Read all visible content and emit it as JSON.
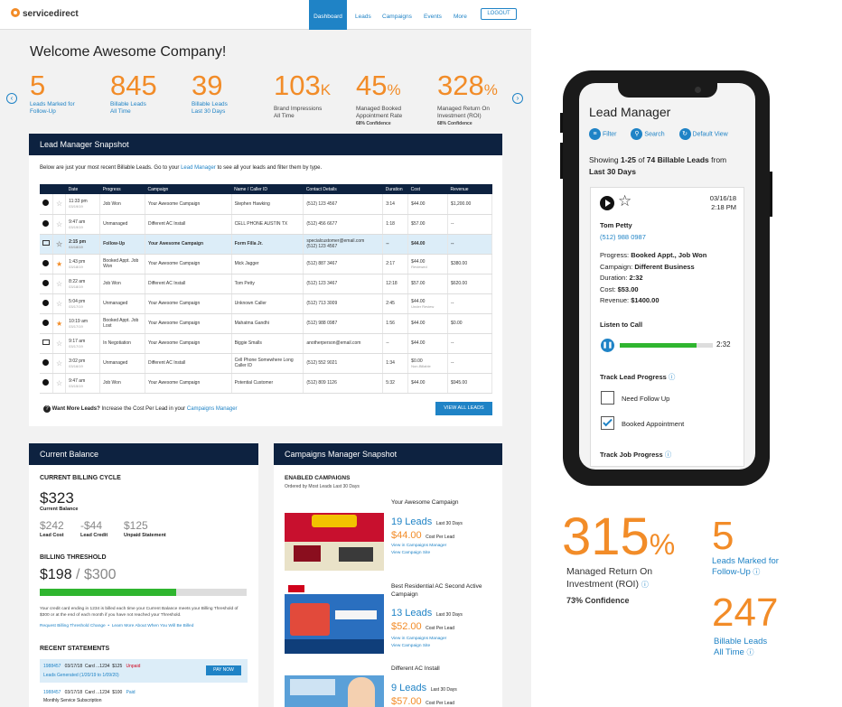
{
  "nav": {
    "logo": "servicedirect",
    "items": [
      "Dashboard",
      "Leads",
      "Campaigns",
      "Events",
      "More"
    ],
    "logout": "LOGOUT"
  },
  "welcome": "Welcome Awesome Company!",
  "stats": [
    {
      "value": "5",
      "unit": "",
      "label1": "Leads Marked for",
      "label2": "Follow-Up",
      "sub": ""
    },
    {
      "value": "845",
      "unit": "",
      "label1": "Billable Leads",
      "label2": "All Time",
      "sub": ""
    },
    {
      "value": "39",
      "unit": "",
      "label1": "Billable Leads",
      "label2": "Last 30 Days",
      "sub": ""
    },
    {
      "value": "103",
      "unit": "K",
      "label1": "Brand Impressions",
      "label2": "All Time",
      "sub": ""
    },
    {
      "value": "45",
      "unit": "%",
      "label1": "Managed Booked",
      "label2": "Appointment Rate",
      "sub": "68% Confidence"
    },
    {
      "value": "328",
      "unit": "%",
      "label1": "Managed Return On",
      "label2": "Investment (ROI)",
      "sub": "68% Confidence"
    }
  ],
  "snapshot": {
    "title": "Lead Manager Snapshot",
    "intro_a": "Below are just your most recent Billable Leads. Go to your ",
    "intro_link": "Lead Manager",
    "intro_b": " to see all your leads and filter them by type.",
    "columns": [
      "",
      "",
      "Date",
      "Progress",
      "Campaign",
      "Name / Caller ID",
      "Contact Details",
      "Duration",
      "Cost",
      "Revenue"
    ],
    "rows": [
      {
        "icon": "play",
        "star": false,
        "time": "11:33 pm",
        "date": "03/19/19",
        "progress": "Job Won",
        "campaign": "Your Awesome Campaign",
        "name": "Stephen Hawking",
        "contact": "(512) 123 4567",
        "contact2": "",
        "duration": "3:14",
        "cost": "$44.00",
        "cost_note": "",
        "revenue": "$1,200.00",
        "hl": false
      },
      {
        "icon": "play",
        "star": false,
        "time": "9:47 am",
        "date": "03/19/19",
        "progress": "Unmanaged",
        "campaign": "Different AC Install",
        "name": "CELL PHONE AUSTIN TX",
        "contact": "(512) 456 6677",
        "contact2": "",
        "duration": "1:18",
        "cost": "$57.00",
        "cost_note": "",
        "revenue": "--",
        "hl": false
      },
      {
        "icon": "mail",
        "star": false,
        "time": "2:15 pm",
        "date": "03/18/19",
        "progress": "Follow-Up",
        "campaign": "Your Awesome Campaign",
        "name": "Form Filla Jr.",
        "contact": "specialcustomer@email.com",
        "contact2": "(512) 123 4567",
        "duration": "--",
        "cost": "$44.00",
        "cost_note": "",
        "revenue": "--",
        "hl": true
      },
      {
        "icon": "play",
        "star": true,
        "time": "1:43 pm",
        "date": "03/18/19",
        "progress": "Booked Appt. Job Won",
        "campaign": "Your Awesome Campaign",
        "name": "Mick Jagger",
        "contact": "(512) 887 3467",
        "contact2": "",
        "duration": "2:17",
        "cost": "$44.00",
        "cost_note": "Reviewed",
        "revenue": "$380.00",
        "hl": false
      },
      {
        "icon": "play",
        "star": false,
        "time": "8:22 am",
        "date": "03/18/19",
        "progress": "Job Won",
        "campaign": "Different AC Install",
        "name": "Tom Petty",
        "contact": "(512) 123 3467",
        "contact2": "",
        "duration": "12:18",
        "cost": "$57.00",
        "cost_note": "",
        "revenue": "$620.00",
        "hl": false
      },
      {
        "icon": "play",
        "star": false,
        "time": "5:04 pm",
        "date": "03/17/19",
        "progress": "Unmanaged",
        "campaign": "Your Awesome Campaign",
        "name": "Unknown Caller",
        "contact": "(512) 713 3009",
        "contact2": "",
        "duration": "2:45",
        "cost": "$44.00",
        "cost_note": "Under Review",
        "revenue": "--",
        "hl": false
      },
      {
        "icon": "play",
        "star": true,
        "time": "10:19 am",
        "date": "03/17/19",
        "progress": "Booked Appt. Job Lost",
        "campaign": "Your Awesome Campaign",
        "name": "Mahatma Gandhi",
        "contact": "(512) 988 0987",
        "contact2": "",
        "duration": "1:56",
        "cost": "$44.00",
        "cost_note": "",
        "revenue": "$0.00",
        "hl": false
      },
      {
        "icon": "mail",
        "star": false,
        "time": "9:17 am",
        "date": "03/17/19",
        "progress": "In Negotiation",
        "campaign": "Your Awesome Campaign",
        "name": "Biggie Smalls",
        "contact": "anotherperson@email.com",
        "contact2": "",
        "duration": "--",
        "cost": "$44.00",
        "cost_note": "",
        "revenue": "--",
        "hl": false
      },
      {
        "icon": "play",
        "star": false,
        "time": "3:02 pm",
        "date": "03/16/19",
        "progress": "Unmanaged",
        "campaign": "Different AC Install",
        "name": "Cell Phone Somewhere Long Caller ID",
        "contact": "(512) 552 9021",
        "contact2": "",
        "duration": "1:34",
        "cost": "$0.00",
        "cost_note": "Non-Billable",
        "revenue": "--",
        "hl": false
      },
      {
        "icon": "play",
        "star": false,
        "time": "9:47 am",
        "date": "03/15/19",
        "progress": "Job Won",
        "campaign": "Your Awesome Campaign",
        "name": "Potential Customer",
        "contact": "(512) 809 1126",
        "contact2": "",
        "duration": "5:32",
        "cost": "$44.00",
        "cost_note": "",
        "revenue": "$945.00",
        "hl": false
      }
    ],
    "more_a": "Want More Leads?",
    "more_b": " Increase the Cost Per Lead in your ",
    "more_link": "Campaigns Manager",
    "view_all": "VIEW ALL LEADS"
  },
  "balance": {
    "title": "Current Balance",
    "cycle_head": "CURRENT BILLING CYCLE",
    "current": "$323",
    "current_label": "Current Balance",
    "lead_cost": "$242",
    "lead_cost_label": "Lead Cost",
    "lead_credit": "-$44",
    "lead_credit_label": "Lead Credit",
    "unpaid": "$125",
    "unpaid_label": "Unpaid Statement",
    "threshold_head": "BILLING THRESHOLD",
    "threshold_value": "$198",
    "threshold_sep": " / ",
    "threshold_max": "$300",
    "threshold_fraction": 0.66,
    "note": "Your credit card ending in 1234 is billed each time your Current Balance meets your Billing Threshold of $300 or at the end of each month if you have not reached your Threshold.",
    "link1": "Request Billing Threshold Change",
    "link2": "Learn More About When You Will Be Billed",
    "statements_head": "RECENT STATEMENTS",
    "st1_id": "1988457",
    "st1_date": "03/17/18",
    "st1_card": "Card ...1234",
    "st1_amount": "$125",
    "st1_status": "Unpaid",
    "st1_desc": "Leads Generated (1/20/19 to 1/09/20)",
    "pay_now": "PAY NOW",
    "st2_id": "1988457",
    "st2_date": "03/17/18",
    "st2_card": "Card ...1234",
    "st2_amount": "$100",
    "st2_status": "Paid",
    "st2_desc": "Monthly Service Subscription"
  },
  "campaigns": {
    "title": "Campaigns Manager Snapshot",
    "enabled_head": "ENABLED CAMPAIGNS",
    "ordered": "Ordered by Most Leads Last 30 Days",
    "items": [
      {
        "name": "Your Awesome Campaign",
        "leads": "19 Leads",
        "leads_sub": "Last 30 Days",
        "cost": "$44.00",
        "cost_sub": "Cost Per Lead",
        "link1": "View in Campaigns Manager",
        "link2": "View Campaign Site",
        "img_color": "#c8102e"
      },
      {
        "name": "Best Residential AC Second Active Campaign",
        "leads": "13 Leads",
        "leads_sub": "Last 30 Days",
        "cost": "$52.00",
        "cost_sub": "Cost Per Lead",
        "link1": "View in Campaigns Manager",
        "link2": "View Campaign Site",
        "img_color": "#2a6fbf"
      },
      {
        "name": "Different AC Install",
        "leads": "9 Leads",
        "leads_sub": "Last 30 Days",
        "cost": "$57.00",
        "cost_sub": "Cost Per Lead",
        "link1": "",
        "link2": "",
        "img_color": "#5aa0d8"
      }
    ]
  },
  "phone": {
    "title": "Lead Manager",
    "filter": "Filter",
    "search": "Search",
    "default_view": "Default View",
    "showing_a": "Showing ",
    "showing_range": "1-25",
    "showing_b": " of ",
    "showing_count": "74 Billable Leads",
    "showing_c": " from",
    "showing_d": "Last 30 Days",
    "lead_date": "03/16/18",
    "lead_time": "2:18 PM",
    "lead_name": "Tom Petty",
    "lead_phone": "(512) 988 0987",
    "progress_label": "Progress: ",
    "progress_val": "Booked Appt., Job Won",
    "campaign_label": "Campaign: ",
    "campaign_val": "Different Business",
    "duration_label": "Duration: ",
    "duration_val": "2:32",
    "cost_label": "Cost: ",
    "cost_val": "$53.00",
    "revenue_label": "Revenue: ",
    "revenue_val": "$1400.00",
    "listen": "Listen to Call",
    "audio_time": "2:32",
    "audio_fraction": 0.83,
    "track_lead": "Track Lead Progress",
    "need_follow": "Need Follow Up",
    "booked": "Booked Appointment",
    "track_job": "Track Job Progress"
  },
  "bigstats": {
    "roi_value": "315",
    "roi_unit": "%",
    "roi_label1": "Managed Return On",
    "roi_label2": "Investment (ROI)",
    "roi_conf": "73% Confidence",
    "follow_value": "5",
    "follow_label1": "Leads Marked for",
    "follow_label2": "Follow-Up",
    "billable_value": "247",
    "billable_label1": "Billable Leads",
    "billable_label2": "All Time"
  },
  "colors": {
    "accent": "#1f83c6",
    "orange": "#f28c28",
    "navy": "#0d2240",
    "green": "#2fb52f",
    "unpaid": "#d0021b"
  }
}
